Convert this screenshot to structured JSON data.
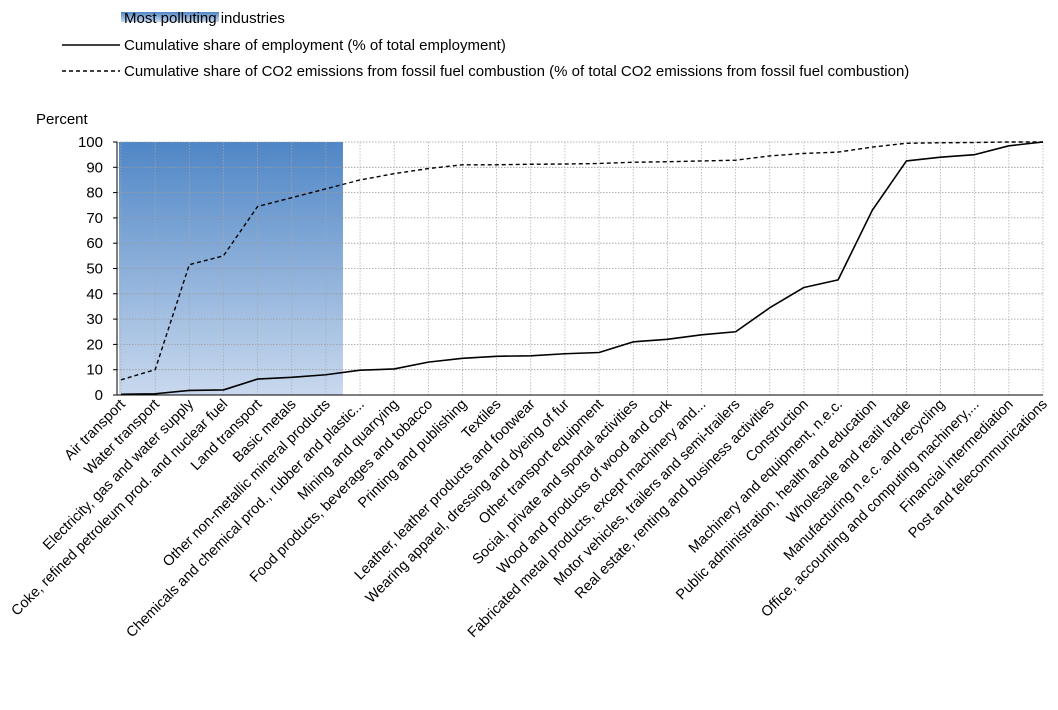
{
  "chart_data": {
    "type": "line",
    "ylabel": "Percent",
    "ylim": [
      0,
      100
    ],
    "yticks": [
      0,
      10,
      20,
      30,
      40,
      50,
      60,
      70,
      80,
      90,
      100
    ],
    "grid": true,
    "legend_position": "top-left",
    "highlight": {
      "name": "Most polluting industries",
      "from_category": "Air transport",
      "to_category": "Other non-metallic mineral products",
      "color_top": "#4f86c6",
      "color_bottom": "#c9d9ee"
    },
    "categories": [
      "Air transport",
      "Water transport",
      "Electricity, gas and water supply",
      "Coke, refined petroleum prod. and nuclear fuel",
      "Land transport",
      "Basic metals",
      "Other non-metallic mineral products",
      "Chemicals and chemical prod., rubber and plastic...",
      "Mining and quarrying",
      "Food products, beverages and tobacco",
      "Printing and publishing",
      "Textiles",
      "Leather, leather products and footwear",
      "Wearing apparel, dressing and dyeing of fur",
      "Other transport equipment",
      "Social, private and sportal activities",
      "Wood and products of wood and cork",
      "Fabricated metal products, except machinery and...",
      "Motor vehicles, trailers and semi-trailers",
      "Real estate, renting and business activities",
      "Construction",
      "Machinery and equipment, n.e.c.",
      "Public administration, health and education",
      "Wholesale and reatil trade",
      "Manufacturing n.e.c. and recycling",
      "Office, accounting and computing machinery,...",
      "Financial intermediation",
      "Post and telecommunications"
    ],
    "series": [
      {
        "name": "Cumulative share of employment (% of total employment)",
        "style": "solid",
        "values": [
          0.3,
          0.5,
          1.8,
          2.0,
          6.3,
          7.0,
          8.0,
          9.8,
          10.3,
          13.0,
          14.5,
          15.3,
          15.5,
          16.3,
          16.8,
          21.0,
          22.0,
          23.8,
          25.0,
          34.5,
          42.5,
          45.5,
          73.0,
          92.5,
          94.0,
          95.0,
          98.5,
          100.0
        ]
      },
      {
        "name": "Cumulative share of CO2 emissions from fossil fuel combustion (% of total CO2 emissions from fossil fuel combustion)",
        "style": "dashed",
        "values": [
          6.0,
          10.0,
          51.5,
          55.0,
          74.5,
          78.0,
          81.5,
          85.0,
          87.5,
          89.5,
          91.0,
          91.0,
          91.2,
          91.3,
          91.5,
          92.0,
          92.2,
          92.5,
          92.8,
          94.5,
          95.5,
          96.0,
          98.0,
          99.5,
          99.7,
          99.8,
          100.0,
          100.0
        ]
      }
    ]
  }
}
